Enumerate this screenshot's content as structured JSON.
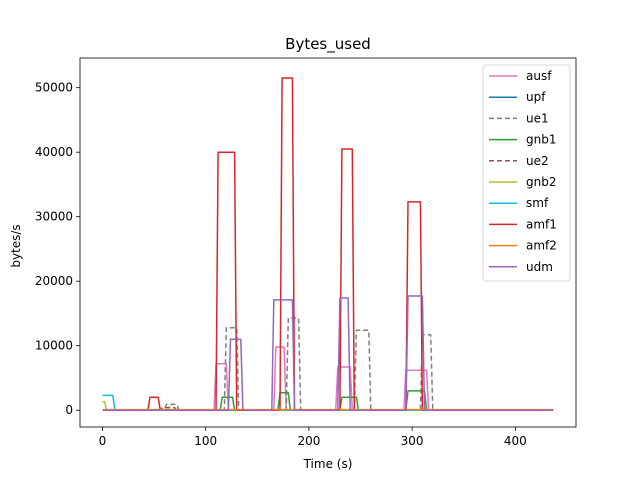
{
  "chart_data": {
    "type": "line",
    "title": "Bytes_used",
    "xlabel": "Time (s)",
    "ylabel": "bytes/s",
    "xlim": [
      -21.8,
      458.8
    ],
    "ylim": [
      -2600,
      54600
    ],
    "xticks": [
      0,
      100,
      200,
      300,
      400
    ],
    "yticks": [
      0,
      10000,
      20000,
      30000,
      40000,
      50000
    ],
    "grid": false,
    "legend": "top-right",
    "series": [
      {
        "name": "ausf",
        "color": "#e377c2",
        "dash": "",
        "x": [
          0,
          108,
          110,
          120,
          122,
          166,
          168,
          176,
          178,
          226,
          228,
          240,
          242,
          292,
          294,
          314,
          316,
          437
        ],
        "y": [
          0,
          0,
          7200,
          7200,
          0,
          0,
          9800,
          9800,
          0,
          0,
          6700,
          6700,
          0,
          0,
          6200,
          6200,
          0,
          0
        ]
      },
      {
        "name": "upf",
        "color": "#1f77b4",
        "dash": "",
        "x": [
          0,
          437
        ],
        "y": [
          0,
          0
        ]
      },
      {
        "name": "ue1",
        "color": "#7f7f7f",
        "dash": "5,3",
        "x": [
          0,
          60,
          62,
          72,
          74,
          118,
          120,
          130,
          132,
          178,
          180,
          190,
          192,
          244,
          246,
          258,
          260,
          308,
          310,
          318,
          320,
          437
        ],
        "y": [
          0,
          0,
          900,
          900,
          0,
          0,
          12800,
          12800,
          0,
          0,
          14300,
          14300,
          0,
          0,
          12400,
          12400,
          0,
          0,
          11700,
          11700,
          0,
          0
        ]
      },
      {
        "name": "gnb1",
        "color": "#2ca02c",
        "dash": "",
        "x": [
          0,
          114,
          116,
          126,
          128,
          170,
          172,
          180,
          182,
          230,
          232,
          246,
          248,
          294,
          296,
          312,
          314,
          437
        ],
        "y": [
          0,
          0,
          2000,
          2000,
          0,
          0,
          2700,
          2700,
          0,
          0,
          2000,
          2000,
          0,
          0,
          3000,
          3000,
          0,
          0
        ]
      },
      {
        "name": "ue2",
        "color": "#8c564b",
        "dash": "5,3",
        "x": [
          0,
          56,
          58,
          70,
          72,
          437
        ],
        "y": [
          0,
          0,
          400,
          400,
          0,
          0
        ]
      },
      {
        "name": "gnb2",
        "color": "#bcbd22",
        "dash": "",
        "x": [
          0,
          2,
          4,
          437
        ],
        "y": [
          1300,
          1300,
          0,
          0
        ]
      },
      {
        "name": "smf",
        "color": "#17becf",
        "dash": "",
        "x": [
          0,
          10,
          12,
          437
        ],
        "y": [
          2300,
          2300,
          0,
          0
        ]
      },
      {
        "name": "amf1",
        "color": "#d62728",
        "dash": "",
        "x": [
          0,
          44,
          46,
          54,
          56,
          110,
          112,
          128,
          130,
          172,
          174,
          184,
          186,
          230,
          232,
          242,
          244,
          294,
          296,
          308,
          310,
          437
        ],
        "y": [
          0,
          0,
          2000,
          2000,
          0,
          0,
          40000,
          40000,
          0,
          0,
          51500,
          51500,
          0,
          0,
          40500,
          40500,
          0,
          0,
          32300,
          32300,
          0,
          0
        ]
      },
      {
        "name": "amf2",
        "color": "#ff7f0e",
        "dash": "",
        "x": [
          0,
          437
        ],
        "y": [
          100,
          100
        ]
      },
      {
        "name": "udm",
        "color": "#9467bd",
        "dash": "",
        "x": [
          0,
          122,
          124,
          134,
          136,
          164,
          166,
          184,
          186,
          228,
          230,
          238,
          240,
          294,
          296,
          310,
          312,
          437
        ],
        "y": [
          0,
          0,
          11000,
          11000,
          0,
          0,
          17100,
          17100,
          0,
          0,
          17400,
          17400,
          0,
          0,
          17700,
          17700,
          0,
          0
        ]
      }
    ]
  }
}
